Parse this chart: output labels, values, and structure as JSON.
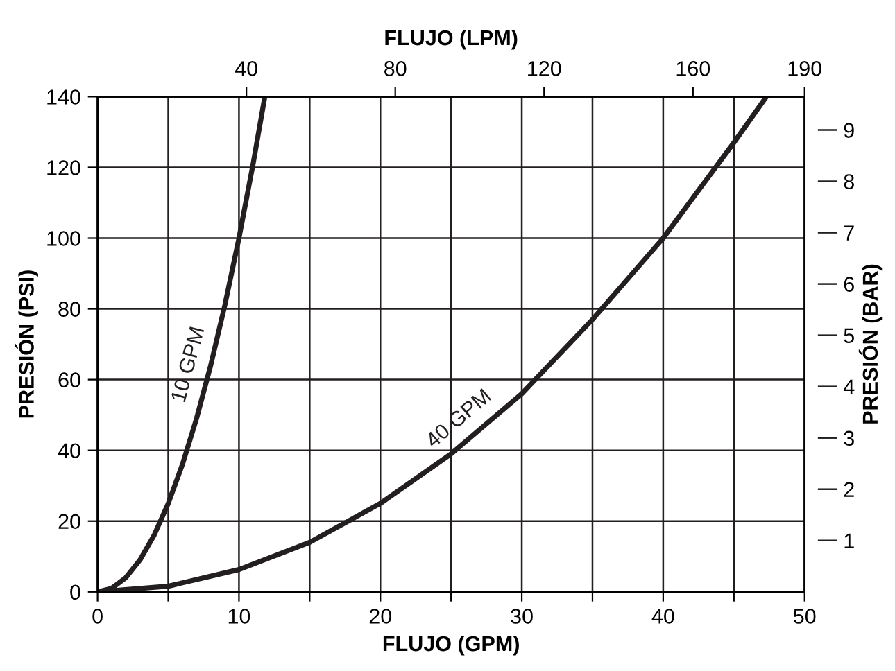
{
  "chart_data": {
    "type": "line",
    "xlabel": "FLUJO (GPM)",
    "ylabel": "PRESIÓN (PSI)",
    "x2label": "FLUJO (LPM)",
    "y2label": "PRESIÓN (BAR)",
    "xlim": [
      0,
      50
    ],
    "xticks": [
      0,
      {
        "value": 5,
        "label": null
      },
      10,
      {
        "value": 15,
        "label": null
      },
      20,
      {
        "value": 25,
        "label": null
      },
      30,
      {
        "value": 35,
        "label": null
      },
      40,
      {
        "value": 45,
        "label": null
      },
      50
    ],
    "ylim": [
      0,
      140
    ],
    "yticks": [
      0,
      20,
      40,
      60,
      80,
      100,
      120,
      140
    ],
    "x2lim": [
      0,
      190
    ],
    "x2ticks": [
      40,
      80,
      120,
      160,
      190
    ],
    "y2lim": [
      0,
      9.65
    ],
    "y2ticks": [
      1,
      2,
      3,
      4,
      5,
      6,
      7,
      8,
      9
    ],
    "grid": true,
    "legend": false,
    "marker": "none",
    "line_style": "solid",
    "series": [
      {
        "name": "10 GPM",
        "color": "#231f20",
        "x": [
          0,
          1,
          2,
          3,
          4,
          5,
          6,
          7,
          8,
          9,
          10,
          11,
          11.83
        ],
        "values": [
          0,
          1,
          4,
          9,
          16,
          25,
          36,
          49,
          64,
          81,
          100,
          121,
          140
        ]
      },
      {
        "name": "40 GPM",
        "color": "#231f20",
        "x": [
          0,
          5,
          10,
          15,
          20,
          25,
          30,
          35,
          40,
          45,
          47.3
        ],
        "values": [
          0,
          1.6,
          6.3,
          14,
          25,
          39,
          56,
          77,
          100,
          127,
          140
        ]
      }
    ]
  }
}
